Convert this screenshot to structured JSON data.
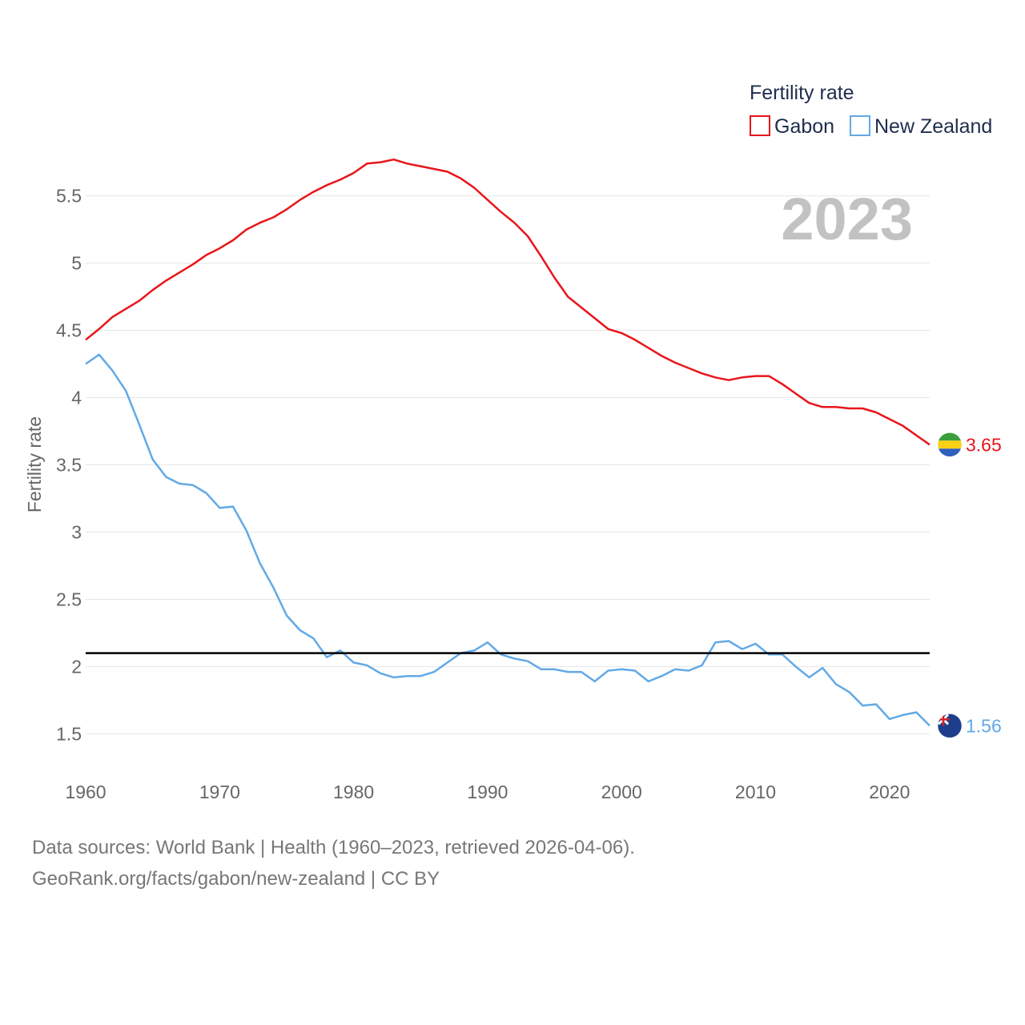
{
  "chart_data": {
    "type": "line",
    "title": "",
    "year_label": "2023",
    "xlabel": "",
    "ylabel": "Fertility rate",
    "xlim": [
      1960,
      2023
    ],
    "ylim": [
      1.3,
      5.7
    ],
    "x_ticks": [
      1960,
      1970,
      1980,
      1990,
      2000,
      2010,
      2020
    ],
    "y_ticks": [
      1.5,
      2,
      2.5,
      3,
      3.5,
      4,
      4.5,
      5,
      5.5
    ],
    "y_tick_labels": [
      "1.5",
      "2",
      "2.5",
      "3",
      "3.5",
      "4",
      "4.5",
      "5",
      "5.5"
    ],
    "reference_line": {
      "y": 2.1,
      "color": "#000000"
    },
    "legend": {
      "title": "Fertility rate",
      "position": "top-right"
    },
    "x": [
      1960,
      1961,
      1962,
      1963,
      1964,
      1965,
      1966,
      1967,
      1968,
      1969,
      1970,
      1971,
      1972,
      1973,
      1974,
      1975,
      1976,
      1977,
      1978,
      1979,
      1980,
      1981,
      1982,
      1983,
      1984,
      1985,
      1986,
      1987,
      1988,
      1989,
      1990,
      1991,
      1992,
      1993,
      1994,
      1995,
      1996,
      1997,
      1998,
      1999,
      2000,
      2001,
      2002,
      2003,
      2004,
      2005,
      2006,
      2007,
      2008,
      2009,
      2010,
      2011,
      2012,
      2013,
      2014,
      2015,
      2016,
      2017,
      2018,
      2019,
      2020,
      2021,
      2022,
      2023
    ],
    "series": [
      {
        "name": "Gabon",
        "color": "#e8151b",
        "end_label": "3.65",
        "values": [
          4.43,
          4.51,
          4.6,
          4.66,
          4.72,
          4.8,
          4.87,
          4.93,
          4.99,
          5.06,
          5.11,
          5.17,
          5.25,
          5.3,
          5.34,
          5.4,
          5.47,
          5.53,
          5.58,
          5.62,
          5.67,
          5.74,
          5.75,
          5.77,
          5.74,
          5.72,
          5.7,
          5.68,
          5.63,
          5.56,
          5.47,
          5.38,
          5.3,
          5.2,
          5.05,
          4.89,
          4.75,
          4.67,
          4.59,
          4.51,
          4.48,
          4.43,
          4.37,
          4.31,
          4.26,
          4.22,
          4.18,
          4.15,
          4.13,
          4.15,
          4.16,
          4.16,
          4.1,
          4.03,
          3.96,
          3.93,
          3.93,
          3.92,
          3.92,
          3.89,
          3.84,
          3.79,
          3.72,
          3.65
        ]
      },
      {
        "name": "New Zealand",
        "color": "#62a9e6",
        "end_label": "1.56",
        "values": [
          4.25,
          4.32,
          4.2,
          4.05,
          3.8,
          3.54,
          3.41,
          3.36,
          3.35,
          3.29,
          3.18,
          3.19,
          3.01,
          2.77,
          2.59,
          2.38,
          2.27,
          2.21,
          2.07,
          2.12,
          2.03,
          2.01,
          1.95,
          1.92,
          1.93,
          1.93,
          1.96,
          2.03,
          2.1,
          2.12,
          2.18,
          2.09,
          2.06,
          2.04,
          1.98,
          1.98,
          1.96,
          1.96,
          1.89,
          1.97,
          1.98,
          1.97,
          1.89,
          1.93,
          1.98,
          1.97,
          2.01,
          2.18,
          2.19,
          2.13,
          2.17,
          2.09,
          2.09,
          2.0,
          1.92,
          1.99,
          1.87,
          1.81,
          1.71,
          1.72,
          1.61,
          1.64,
          1.66,
          1.56
        ]
      }
    ]
  },
  "footer": {
    "line1": "Data sources: World Bank | Health (1960–2023, retrieved 2026-04-06).",
    "line2": "GeoRank.org/facts/gabon/new-zealand | CC BY"
  },
  "flags": {
    "gabon": [
      "#3a9e3a",
      "#fcd116",
      "#2f5fbf"
    ],
    "new_zealand": [
      "#1e3e8c",
      "#d62028",
      "#ffffff"
    ]
  }
}
